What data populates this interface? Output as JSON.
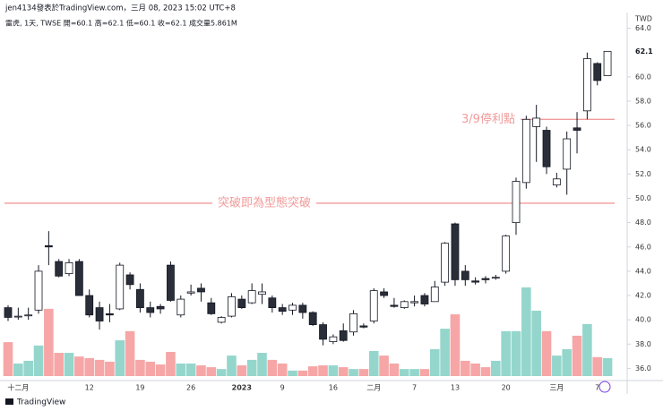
{
  "chart_data": {
    "type": "candlestick",
    "title": "jen4134發表於TradingView.com，三月 08, 2023 15:02 UTC+8",
    "subtitle": "雷虎, 1天, TWSE  開=60.1  高=62.1  低=60.1  收=62.1  成交量5.861M",
    "footer": "TradingView",
    "currency": "TWD",
    "categories": [
      null,
      "十二月",
      null,
      null,
      null,
      null,
      null,
      null,
      "12",
      null,
      null,
      null,
      null,
      "19",
      null,
      null,
      null,
      null,
      "26",
      null,
      null,
      null,
      null,
      "2023",
      null,
      null,
      null,
      "9",
      null,
      null,
      null,
      null,
      "16",
      null,
      null,
      null,
      "二月",
      null,
      null,
      null,
      "7",
      null,
      null,
      null,
      "13",
      null,
      null,
      null,
      null,
      "20",
      null,
      null,
      null,
      null,
      "三月",
      null,
      null,
      null,
      "7",
      null
    ],
    "open": [
      41.0,
      40.3,
      40.4,
      40.8,
      46.1,
      44.8,
      43.8,
      44.8,
      42.0,
      41.0,
      40.5,
      40.9,
      43.7,
      42.5,
      41.0,
      41.1,
      44.5,
      40.4,
      42.2,
      42.6,
      41.4,
      39.8,
      40.3,
      41.7,
      41.4,
      42.1,
      41.8,
      41.0,
      40.8,
      41.2,
      40.6,
      39.6,
      38.2,
      39.1,
      39.0,
      39.5,
      39.9,
      42.3,
      41.2,
      41.0,
      41.4,
      42.0,
      41.5,
      43.1,
      47.9,
      44.0,
      43.2,
      43.4,
      43.5,
      44.0,
      48.0,
      51.3,
      55.9,
      55.6,
      51.1,
      52.4,
      55.8,
      57.2,
      61.1,
      60.1
    ],
    "high": [
      41.2,
      41.0,
      41.0,
      44.5,
      47.3,
      45.0,
      45.0,
      45.0,
      42.5,
      41.5,
      41.3,
      44.7,
      43.9,
      43.0,
      41.5,
      41.3,
      44.8,
      42.0,
      42.9,
      43.0,
      41.8,
      40.3,
      42.2,
      42.0,
      43.0,
      43.0,
      42.0,
      41.3,
      41.4,
      41.4,
      40.7,
      39.8,
      38.8,
      39.7,
      40.8,
      39.7,
      42.6,
      42.6,
      41.8,
      41.6,
      42.0,
      42.2,
      43.2,
      46.4,
      48.0,
      44.5,
      43.5,
      43.6,
      43.7,
      47.0,
      51.7,
      56.8,
      57.7,
      55.9,
      52.1,
      55.5,
      57.1,
      62.0,
      61.2,
      62.1
    ],
    "low": [
      39.9,
      40.0,
      40.0,
      40.5,
      44.5,
      43.5,
      43.6,
      42.0,
      40.2,
      39.2,
      39.8,
      40.8,
      42.5,
      40.6,
      40.2,
      40.5,
      41.5,
      40.2,
      42.0,
      41.5,
      40.4,
      39.7,
      40.2,
      40.9,
      41.3,
      41.3,
      40.6,
      40.4,
      40.4,
      40.1,
      39.5,
      37.9,
      38.0,
      38.2,
      38.7,
      39.3,
      39.7,
      41.8,
      41.0,
      40.9,
      41.1,
      41.1,
      41.5,
      42.8,
      42.8,
      42.8,
      42.9,
      43.0,
      43.3,
      43.8,
      47.0,
      50.8,
      53.0,
      52.0,
      50.9,
      50.3,
      53.7,
      56.5,
      59.3,
      60.1
    ],
    "close": [
      40.2,
      40.3,
      40.4,
      44.0,
      46.0,
      43.6,
      44.7,
      42.0,
      40.4,
      39.9,
      40.4,
      44.5,
      42.9,
      41.0,
      40.6,
      40.9,
      41.6,
      41.7,
      42.3,
      42.3,
      40.5,
      40.2,
      41.9,
      41.0,
      42.4,
      42.3,
      41.0,
      40.7,
      41.2,
      40.6,
      39.6,
      38.4,
      38.6,
      38.3,
      40.5,
      39.4,
      42.4,
      42.0,
      41.1,
      41.5,
      41.5,
      41.3,
      42.7,
      46.3,
      43.3,
      43.3,
      43.1,
      43.3,
      43.5,
      46.9,
      51.4,
      56.5,
      56.6,
      52.6,
      51.6,
      54.9,
      55.6,
      61.5,
      59.7,
      62.1
    ],
    "volume": [
      11.1,
      4.1,
      5.0,
      10.0,
      22.0,
      7.6,
      7.6,
      6.4,
      5.9,
      5.3,
      4.7,
      11.7,
      14.7,
      5.3,
      4.7,
      3.8,
      7.9,
      4.1,
      4.1,
      3.5,
      2.9,
      2.3,
      6.7,
      3.5,
      5.3,
      7.6,
      5.3,
      4.1,
      1.8,
      1.8,
      3.2,
      3.5,
      3.5,
      2.9,
      2.3,
      2.3,
      8.2,
      6.7,
      4.1,
      2.3,
      2.3,
      2.3,
      8.8,
      15.5,
      20.2,
      5.0,
      4.1,
      2.9,
      5.0,
      14.7,
      14.7,
      29.0,
      21.4,
      14.7,
      6.7,
      8.8,
      13.2,
      17.0,
      6.2,
      5.861
    ],
    "up_color": "#ffffff",
    "down_color": "#2a2e39",
    "volume_up_color": "#94d6cc",
    "volume_down_color": "#f6a6a6",
    "ylim": [
      35,
      65
    ],
    "yticks": [
      {
        "value": 36,
        "label": "36.0"
      },
      {
        "value": 38,
        "label": "38.0"
      },
      {
        "value": 40,
        "label": "40.0"
      },
      {
        "value": 42,
        "label": "42.0"
      },
      {
        "value": 44,
        "label": "44.0"
      },
      {
        "value": 46,
        "label": "46.0"
      },
      {
        "value": 48,
        "label": "48.0"
      },
      {
        "value": 50,
        "label": "50.0"
      },
      {
        "value": 52,
        "label": "52.0"
      },
      {
        "value": 54,
        "label": "54.0"
      },
      {
        "value": 56,
        "label": "56.0"
      },
      {
        "value": 58,
        "label": "58.0"
      },
      {
        "value": 60,
        "label": "60.0"
      },
      {
        "value": 64,
        "label": "64.0"
      }
    ],
    "annotations": [
      {
        "text": "3/9停利點",
        "value": 56.5,
        "color": "#f29b9b"
      },
      {
        "text": "突破即為型態突破",
        "value": 49.6,
        "color": "#f29b9b"
      }
    ]
  }
}
